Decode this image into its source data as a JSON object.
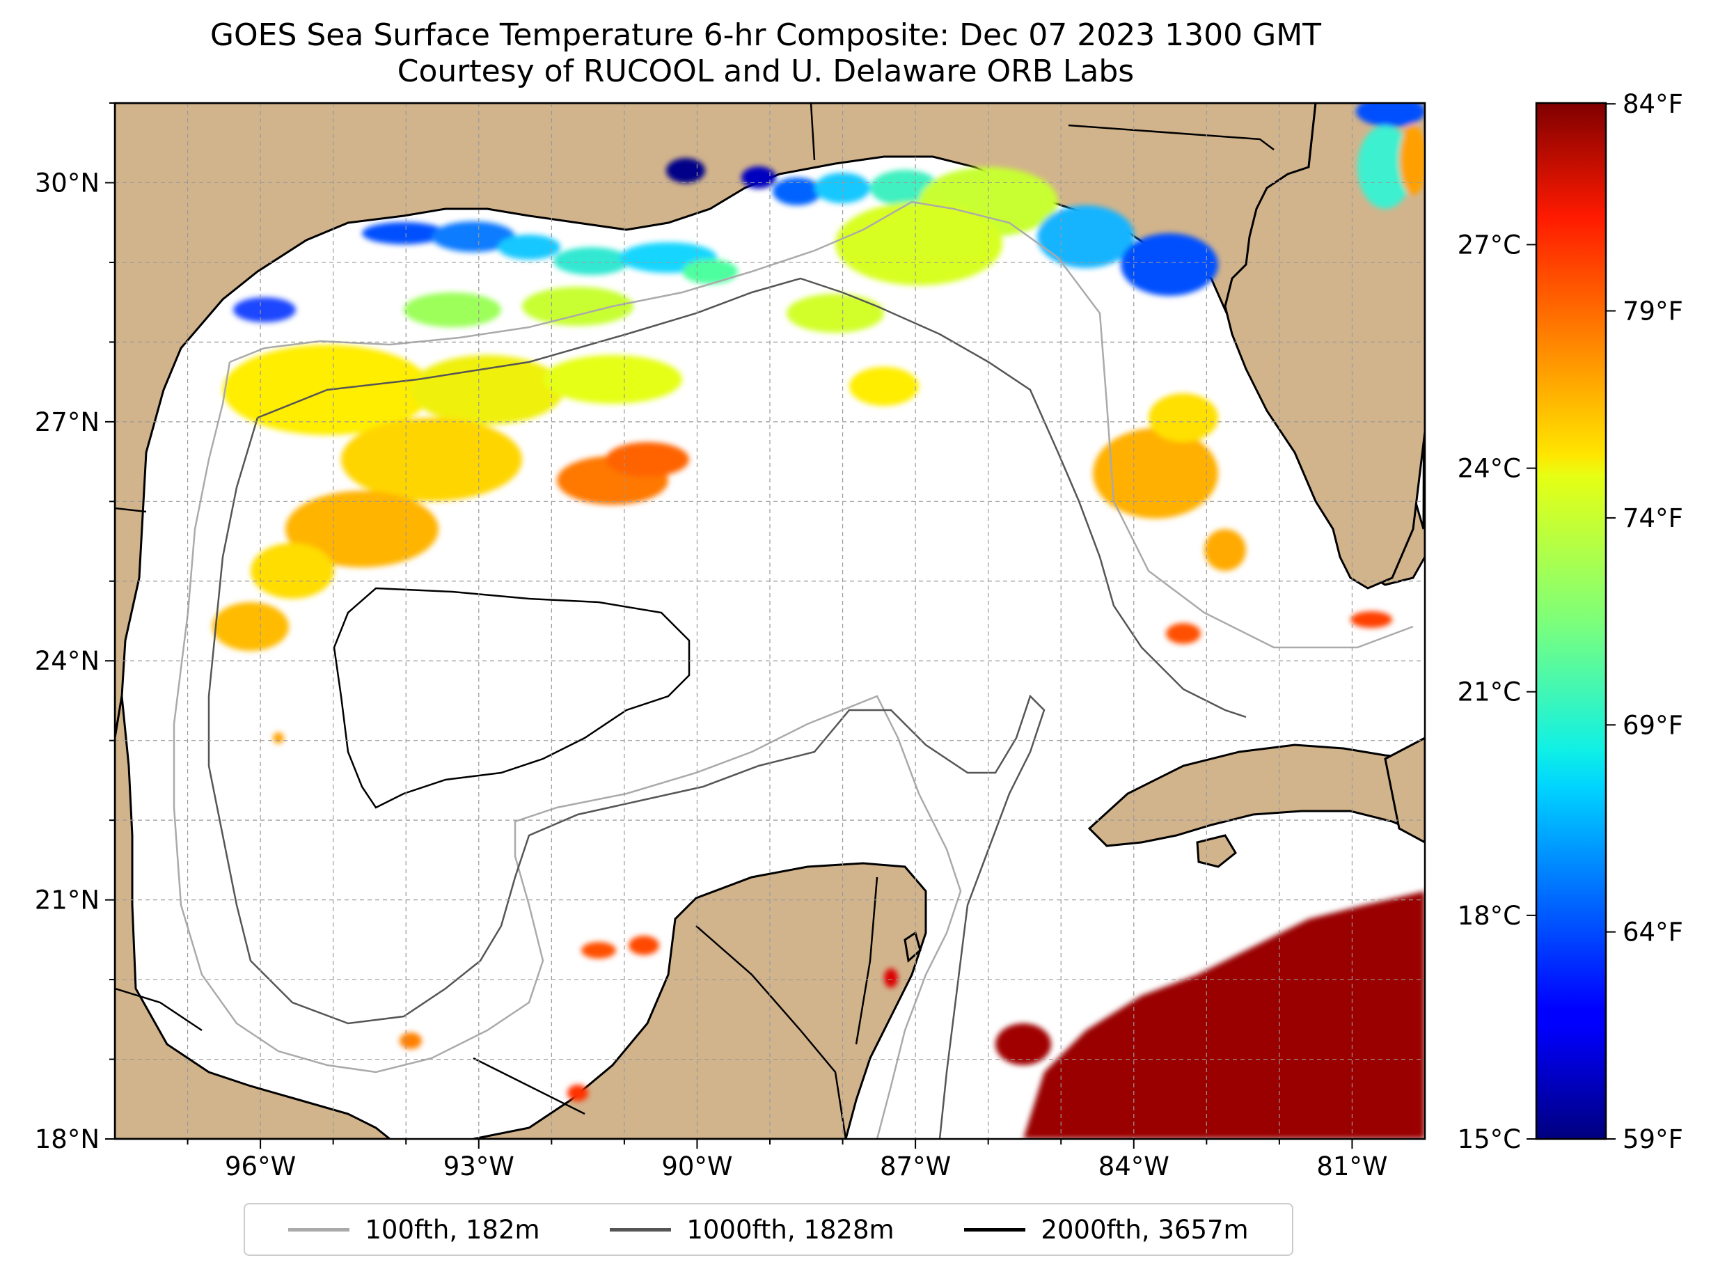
{
  "title": "GOES Sea Surface Temperature 6-hr Composite: Dec 07 2023 1300 GMT",
  "subtitle": "Courtesy of RUCOOL and U. Delaware ORB Labs",
  "map": {
    "lon_range": [
      -98,
      -80
    ],
    "lat_range": [
      18,
      31
    ],
    "lon_ticks": [
      {
        "value": -96,
        "label": "96°W"
      },
      {
        "value": -93,
        "label": "93°W"
      },
      {
        "value": -90,
        "label": "90°W"
      },
      {
        "value": -87,
        "label": "87°W"
      },
      {
        "value": -84,
        "label": "84°W"
      },
      {
        "value": -81,
        "label": "81°W"
      }
    ],
    "lat_ticks": [
      {
        "value": 18,
        "label": "18°N"
      },
      {
        "value": 21,
        "label": "21°N"
      },
      {
        "value": 24,
        "label": "24°N"
      },
      {
        "value": 27,
        "label": "27°N"
      },
      {
        "value": 30,
        "label": "30°N"
      }
    ],
    "gridlines": true,
    "land_color": "#d2b48c",
    "ocean_color": "#ffffff"
  },
  "colorbar": {
    "colormap": "jet",
    "range_c": [
      15,
      28.9
    ],
    "celsius_ticks": [
      {
        "value": 15,
        "label": "15°C"
      },
      {
        "value": 18,
        "label": "18°C"
      },
      {
        "value": 21,
        "label": "21°C"
      },
      {
        "value": 24,
        "label": "24°C"
      },
      {
        "value": 27,
        "label": "27°C"
      }
    ],
    "fahrenheit_ticks": [
      {
        "value": 59,
        "label": "59°F"
      },
      {
        "value": 64,
        "label": "64°F"
      },
      {
        "value": 69,
        "label": "69°F"
      },
      {
        "value": 74,
        "label": "74°F"
      },
      {
        "value": 79,
        "label": "79°F"
      },
      {
        "value": 84,
        "label": "84°F"
      }
    ]
  },
  "legend": {
    "items": [
      {
        "label": "100fth, 182m",
        "color": "#aaaaaa"
      },
      {
        "label": "1000fth, 1828m",
        "color": "#555555"
      },
      {
        "label": "2000fth, 3657m",
        "color": "#000000"
      }
    ]
  }
}
